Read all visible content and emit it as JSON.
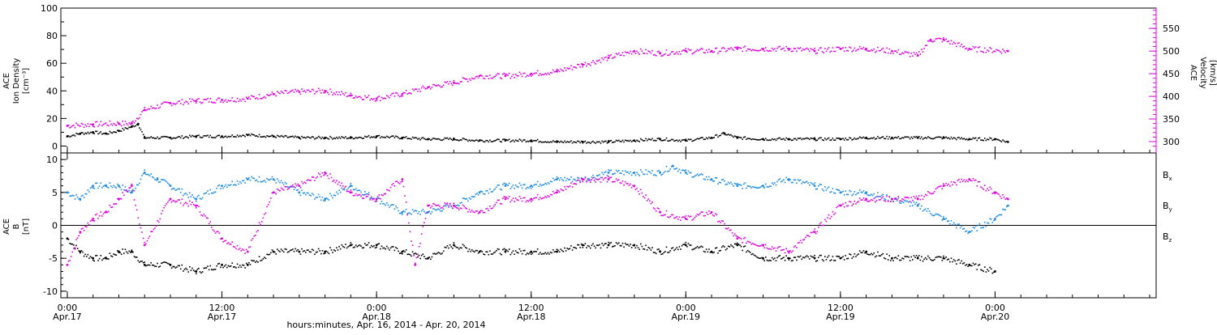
{
  "chart_data": [
    {
      "type": "scatter",
      "panel": "top",
      "ylabel": [
        "ACE",
        "Ion Density",
        "[cm⁻³]"
      ],
      "ylabel_right": [
        "ACE",
        "Velocity",
        "[km/s]"
      ],
      "ylim": [
        -5,
        100
      ],
      "yticks": [
        "0",
        "20",
        "40",
        "60",
        "80",
        "100"
      ],
      "y2lim": [
        275,
        595
      ],
      "y2ticks": [
        "300",
        "350",
        "400",
        "450",
        "500",
        "550"
      ],
      "xlim_hours": [
        -0.5,
        84.5
      ],
      "series": [
        {
          "color": "#000000",
          "axis": "left",
          "points": [
            [
              0,
              7
            ],
            [
              1,
              9
            ],
            [
              2,
              10
            ],
            [
              3,
              9
            ],
            [
              4,
              11
            ],
            [
              5,
              14
            ],
            [
              5.5,
              16
            ],
            [
              6,
              6
            ],
            [
              8,
              6
            ],
            [
              10,
              7
            ],
            [
              12,
              7
            ],
            [
              14,
              8
            ],
            [
              16,
              7
            ],
            [
              18,
              6
            ],
            [
              20,
              6
            ],
            [
              22,
              6
            ],
            [
              24,
              7
            ],
            [
              26,
              6
            ],
            [
              28,
              5
            ],
            [
              30,
              5
            ],
            [
              32,
              4
            ],
            [
              34,
              4
            ],
            [
              36,
              4
            ],
            [
              38,
              3
            ],
            [
              40,
              3
            ],
            [
              42,
              3
            ],
            [
              44,
              4
            ],
            [
              46,
              5
            ],
            [
              48,
              4
            ],
            [
              50,
              6
            ],
            [
              51,
              9
            ],
            [
              52,
              6
            ],
            [
              54,
              5
            ],
            [
              56,
              5
            ],
            [
              58,
              5
            ],
            [
              60,
              5
            ],
            [
              62,
              6
            ],
            [
              64,
              6
            ],
            [
              66,
              6
            ],
            [
              68,
              6
            ],
            [
              70,
              5
            ],
            [
              72,
              5
            ],
            [
              73,
              3
            ]
          ]
        },
        {
          "color": "#e000e0",
          "axis": "right",
          "points": [
            [
              0,
              335
            ],
            [
              2,
              338
            ],
            [
              4,
              340
            ],
            [
              5,
              340
            ],
            [
              6,
              370
            ],
            [
              8,
              385
            ],
            [
              10,
              390
            ],
            [
              12,
              392
            ],
            [
              14,
              395
            ],
            [
              16,
              405
            ],
            [
              18,
              410
            ],
            [
              20,
              412
            ],
            [
              22,
              402
            ],
            [
              24,
              395
            ],
            [
              26,
              405
            ],
            [
              28,
              420
            ],
            [
              30,
              430
            ],
            [
              32,
              445
            ],
            [
              34,
              445
            ],
            [
              36,
              450
            ],
            [
              38,
              455
            ],
            [
              40,
              470
            ],
            [
              42,
              485
            ],
            [
              44,
              500
            ],
            [
              46,
              495
            ],
            [
              48,
              500
            ],
            [
              50,
              500
            ],
            [
              52,
              505
            ],
            [
              54,
              505
            ],
            [
              56,
              505
            ],
            [
              58,
              500
            ],
            [
              60,
              505
            ],
            [
              62,
              505
            ],
            [
              64,
              500
            ],
            [
              66,
              490
            ],
            [
              67,
              525
            ],
            [
              68,
              525
            ],
            [
              70,
              505
            ],
            [
              73,
              500
            ]
          ]
        }
      ]
    },
    {
      "type": "scatter",
      "panel": "bottom",
      "ylabel": [
        "ACE",
        "B",
        "[nT]"
      ],
      "ylim": [
        -11,
        11
      ],
      "yticks": [
        "-10",
        "-5",
        "0",
        "5",
        "10"
      ],
      "zero_line": true,
      "xlim_hours": [
        -0.5,
        84.5
      ],
      "xticks": [
        {
          "hour": 0,
          "time": "0:00",
          "date": "Apr.17"
        },
        {
          "hour": 12,
          "time": "12:00",
          "date": "Apr.17"
        },
        {
          "hour": 24,
          "time": "0:00",
          "date": "Apr.18"
        },
        {
          "hour": 36,
          "time": "12:00",
          "date": "Apr.18"
        },
        {
          "hour": 48,
          "time": "0:00",
          "date": "Apr.19"
        },
        {
          "hour": 60,
          "time": "12:00",
          "date": "Apr.19"
        },
        {
          "hour": 72,
          "time": "0:00",
          "date": "Apr.20"
        }
      ],
      "xlabel": "hours:minutes, Apr. 16, 2014 - Apr. 20, 2014",
      "series": [
        {
          "label": "B",
          "subscript": "x",
          "color": "#000000",
          "points": [
            [
              0,
              -2
            ],
            [
              1,
              -4
            ],
            [
              2,
              -5
            ],
            [
              3,
              -5
            ],
            [
              4,
              -4
            ],
            [
              5,
              -4
            ],
            [
              6,
              -6
            ],
            [
              8,
              -6
            ],
            [
              10,
              -7
            ],
            [
              12,
              -6
            ],
            [
              14,
              -6
            ],
            [
              16,
              -4
            ],
            [
              18,
              -4
            ],
            [
              20,
              -4
            ],
            [
              22,
              -3
            ],
            [
              24,
              -3
            ],
            [
              26,
              -4
            ],
            [
              28,
              -5
            ],
            [
              30,
              -3
            ],
            [
              32,
              -4
            ],
            [
              34,
              -4
            ],
            [
              36,
              -4
            ],
            [
              38,
              -4
            ],
            [
              40,
              -3
            ],
            [
              42,
              -3
            ],
            [
              44,
              -3
            ],
            [
              46,
              -4
            ],
            [
              48,
              -3
            ],
            [
              50,
              -4
            ],
            [
              52,
              -3
            ],
            [
              54,
              -5
            ],
            [
              56,
              -5
            ],
            [
              58,
              -5
            ],
            [
              60,
              -5
            ],
            [
              62,
              -4
            ],
            [
              64,
              -5
            ],
            [
              66,
              -5
            ],
            [
              68,
              -5
            ],
            [
              70,
              -6
            ],
            [
              72,
              -7
            ]
          ]
        },
        {
          "label": "B",
          "subscript": "y",
          "color": "#1a8ae6",
          "points": [
            [
              0,
              5
            ],
            [
              1,
              4
            ],
            [
              2,
              6
            ],
            [
              3,
              6
            ],
            [
              4,
              6
            ],
            [
              5,
              5
            ],
            [
              6,
              8
            ],
            [
              7,
              7
            ],
            [
              8,
              6
            ],
            [
              10,
              4
            ],
            [
              12,
              6
            ],
            [
              14,
              7
            ],
            [
              16,
              7
            ],
            [
              18,
              5
            ],
            [
              20,
              4
            ],
            [
              22,
              6
            ],
            [
              24,
              4
            ],
            [
              26,
              2
            ],
            [
              28,
              2
            ],
            [
              30,
              3
            ],
            [
              32,
              5
            ],
            [
              34,
              6
            ],
            [
              36,
              6
            ],
            [
              38,
              7
            ],
            [
              40,
              7
            ],
            [
              42,
              8
            ],
            [
              44,
              8
            ],
            [
              46,
              8
            ],
            [
              47,
              9
            ],
            [
              48,
              8
            ],
            [
              50,
              7
            ],
            [
              52,
              6
            ],
            [
              54,
              6
            ],
            [
              56,
              7
            ],
            [
              58,
              6
            ],
            [
              60,
              5
            ],
            [
              62,
              5
            ],
            [
              64,
              4
            ],
            [
              66,
              3
            ],
            [
              68,
              1
            ],
            [
              70,
              -1
            ],
            [
              72,
              1
            ],
            [
              73,
              3
            ]
          ]
        },
        {
          "label": "B",
          "subscript": "z",
          "color": "#e000e0",
          "points": [
            [
              0,
              -6
            ],
            [
              1,
              -1
            ],
            [
              2,
              1
            ],
            [
              3,
              2
            ],
            [
              4,
              4
            ],
            [
              5,
              6
            ],
            [
              6,
              -3
            ],
            [
              8,
              4
            ],
            [
              10,
              3
            ],
            [
              12,
              -2
            ],
            [
              14,
              -4
            ],
            [
              16,
              5
            ],
            [
              18,
              6
            ],
            [
              20,
              8
            ],
            [
              22,
              5
            ],
            [
              24,
              4
            ],
            [
              26,
              7
            ],
            [
              27,
              -6
            ],
            [
              28,
              3
            ],
            [
              30,
              3
            ],
            [
              32,
              2
            ],
            [
              34,
              4
            ],
            [
              36,
              4
            ],
            [
              38,
              5
            ],
            [
              40,
              7
            ],
            [
              42,
              7
            ],
            [
              44,
              6
            ],
            [
              46,
              2
            ],
            [
              48,
              1
            ],
            [
              50,
              2
            ],
            [
              52,
              -2
            ],
            [
              54,
              -3
            ],
            [
              56,
              -4
            ],
            [
              58,
              -1
            ],
            [
              60,
              3
            ],
            [
              62,
              4
            ],
            [
              64,
              4
            ],
            [
              66,
              4
            ],
            [
              68,
              6
            ],
            [
              70,
              7
            ],
            [
              72,
              5
            ],
            [
              73,
              4
            ]
          ]
        }
      ]
    }
  ]
}
